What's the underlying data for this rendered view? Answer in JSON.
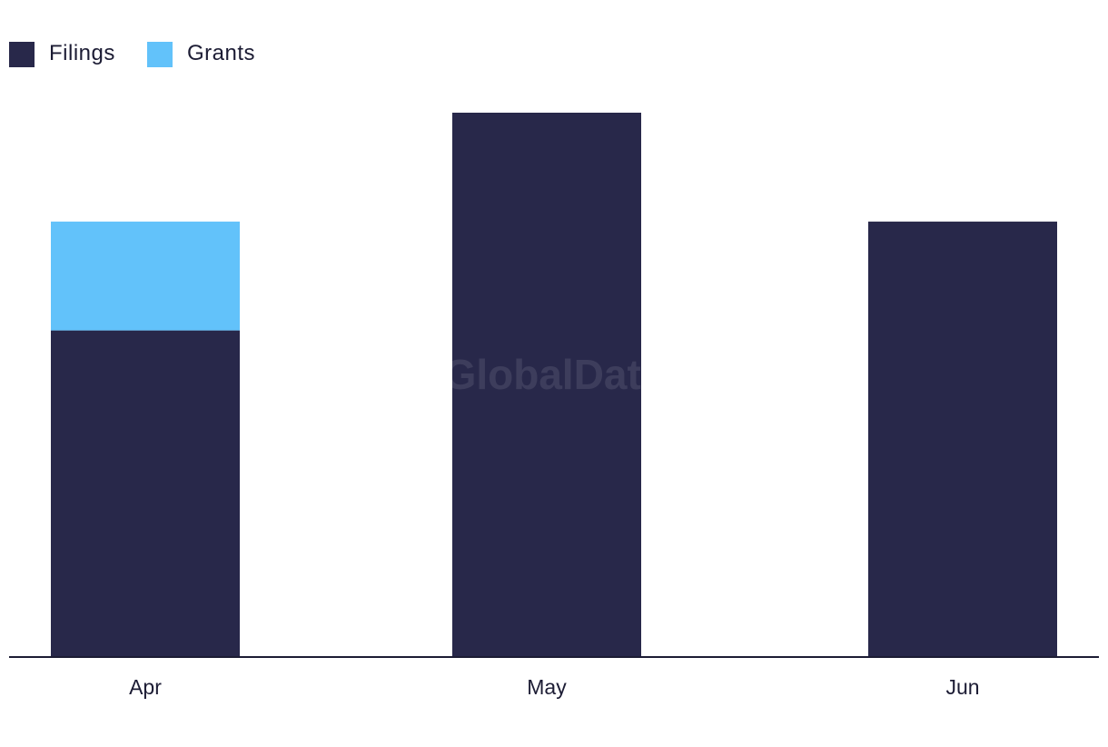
{
  "chart_data": {
    "type": "bar",
    "stacked": true,
    "categories": [
      "Apr",
      "May",
      "Jun"
    ],
    "series": [
      {
        "name": "Filings",
        "values": [
          3,
          5,
          4
        ],
        "color": "#28284a"
      },
      {
        "name": "Grants",
        "values": [
          1,
          0,
          0
        ],
        "color": "#62c2fa"
      }
    ],
    "ylim": [
      0,
      5
    ],
    "grid": false,
    "legend": "top-left",
    "watermark": "GlobalData"
  }
}
